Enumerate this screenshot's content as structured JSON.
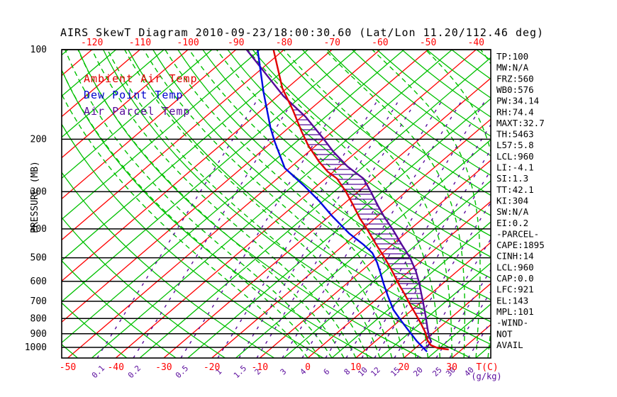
{
  "title": "AIRS SkewT Diagram 2010-09-23/18:00:30.60 (Lat/Lon 11.20/112.46 deg)",
  "colors": {
    "isotherm_red": "#ff0000",
    "grid_green": "#00c000",
    "mixing_purple": "#5a0b9d",
    "pressure_black": "#000000",
    "ambient": "#e00000",
    "dewpoint": "#0008e0",
    "parcel": "#550a99"
  },
  "legend": [
    {
      "label": "Ambient Air Temp",
      "color": "#e00000"
    },
    {
      "label": "Dew Point Temp",
      "color": "#0000cc"
    },
    {
      "label": "Air Parcel Temp",
      "color": "#550a99"
    }
  ],
  "axes": {
    "pressure_label": "PRESSURE (MB)",
    "pressure_ticks": [
      100,
      200,
      300,
      400,
      500,
      600,
      700,
      800,
      900,
      1000
    ],
    "top_temp_ticks": [
      -120,
      -110,
      -100,
      -90,
      -80,
      -70,
      -60,
      -50,
      -40
    ],
    "bottom_temp_ticks": [
      -50,
      -40,
      -30,
      -20,
      -10,
      0,
      10,
      20,
      30
    ],
    "temp_unit_label": "T(C)",
    "mixing_ratio_ticks": [
      0.1,
      0.2,
      0.5,
      1,
      1.5,
      2,
      3,
      4,
      6,
      8,
      10,
      12,
      15,
      20,
      25,
      30,
      40
    ],
    "mixing_unit_label": "(g/kg)"
  },
  "stats": [
    "TP:100",
    "MW:N/A",
    "FRZ:560",
    "WB0:576",
    "PW:34.14",
    "RH:74.4",
    "MAXT:32.7",
    "TH:5463",
    "L57:5.8",
    "LCL:960",
    "LI:-4.1",
    "SI:1.3",
    "TT:42.1",
    "KI:304",
    "SW:N/A",
    "EI:0.2",
    "-PARCEL-",
    "CAPE:1895",
    "CINH:14",
    "LCL:960",
    "CAP:0.0",
    "LFC:921",
    "EL:143",
    "MPL:101",
    "-WIND-",
    "NOT",
    "AVAIL"
  ],
  "chart_data": {
    "type": "line",
    "variant": "skew-t-log-p",
    "title": "AIRS SkewT Diagram 2010-09-23/18:00:30.60 (Lat/Lon 11.20/112.46 deg)",
    "ylabel": "PRESSURE (MB)",
    "xlabel": "T(C)",
    "pressure_range_mb": [
      100,
      1085
    ],
    "bottom_temp_range_c": [
      -50,
      30
    ],
    "top_temp_range_c": [
      -120,
      -40
    ],
    "grid": {
      "isotherms_red_interval_c": 10,
      "isotherms_green_interval_c": 10,
      "isotherms_green_offset_c": 5,
      "dry_adiabats": "solid green, every 10 K potential temperature",
      "moist_adiabats": "dashed green, every 2.5 C surface temperature",
      "mixing_ratio_lines": "dashed purple at labeled g/kg values",
      "cape_region": "horizontal purple hatching between Ambient and Parcel curves from ~950 mb up to ~150 mb"
    },
    "series": [
      {
        "name": "Ambient Air Temp",
        "color": "#e00000",
        "units": [
          "mb",
          "C"
        ],
        "points": [
          [
            100,
            -82.2
          ],
          [
            135,
            -70.9
          ],
          [
            159,
            -63.6
          ],
          [
            188,
            -56.5
          ],
          [
            210,
            -51.6
          ],
          [
            238,
            -45.4
          ],
          [
            257,
            -41.2
          ],
          [
            271,
            -37.6
          ],
          [
            299,
            -32.7
          ],
          [
            334,
            -27.6
          ],
          [
            369,
            -23.1
          ],
          [
            400,
            -19.1
          ],
          [
            451,
            -13.4
          ],
          [
            500,
            -8.4
          ],
          [
            548,
            -4.1
          ],
          [
            611,
            0.8
          ],
          [
            662,
            4.6
          ],
          [
            718,
            8.3
          ],
          [
            770,
            11.6
          ],
          [
            832,
            15.2
          ],
          [
            890,
            18.2
          ],
          [
            944,
            20.5
          ],
          [
            983,
            22.5
          ],
          [
            1005,
            24.6
          ],
          [
            1017,
            27.3
          ]
        ]
      },
      {
        "name": "Dew Point Temp",
        "color": "#0008e0",
        "units": [
          "mb",
          "C"
        ],
        "points": [
          [
            100,
            -85.5
          ],
          [
            139,
            -73.9
          ],
          [
            183,
            -63.8
          ],
          [
            204,
            -59.5
          ],
          [
            250,
            -51.0
          ],
          [
            286,
            -42.8
          ],
          [
            322,
            -35.9
          ],
          [
            362,
            -29.5
          ],
          [
            415,
            -21.6
          ],
          [
            451,
            -16.1
          ],
          [
            482,
            -12.1
          ],
          [
            519,
            -8.8
          ],
          [
            562,
            -5.6
          ],
          [
            611,
            -2.3
          ],
          [
            674,
            1.7
          ],
          [
            748,
            6.1
          ],
          [
            811,
            10.2
          ],
          [
            871,
            13.9
          ],
          [
            953,
            18.6
          ],
          [
            1034,
            23.3
          ]
        ]
      },
      {
        "name": "Air Parcel Temp",
        "color": "#550a99",
        "units": [
          "mb",
          "C"
        ],
        "points": [
          [
            100,
            -87.8
          ],
          [
            143,
            -68.9
          ],
          [
            168,
            -59.2
          ],
          [
            198,
            -50.4
          ],
          [
            221,
            -44.7
          ],
          [
            247,
            -38.3
          ],
          [
            271,
            -32.1
          ],
          [
            299,
            -27.5
          ],
          [
            334,
            -22.5
          ],
          [
            367,
            -18.1
          ],
          [
            400,
            -13.8
          ],
          [
            451,
            -8.1
          ],
          [
            500,
            -3.1
          ],
          [
            555,
            1.4
          ],
          [
            604,
            4.7
          ],
          [
            662,
            8.1
          ],
          [
            726,
            11.5
          ],
          [
            793,
            14.7
          ],
          [
            858,
            17.5
          ],
          [
            916,
            19.9
          ],
          [
            956,
            21.7
          ],
          [
            992,
            22.1
          ],
          [
            1010,
            21.9
          ]
        ]
      }
    ],
    "annotations": {
      "sounding_indices": [
        "TP:100",
        "MW:N/A",
        "FRZ:560",
        "WB0:576",
        "PW:34.14",
        "RH:74.4",
        "MAXT:32.7",
        "TH:5463",
        "L57:5.8",
        "LCL:960",
        "LI:-4.1",
        "SI:1.3",
        "TT:42.1",
        "KI:304",
        "SW:N/A",
        "EI:0.2"
      ],
      "parcel_indices": [
        "CAPE:1895",
        "CINH:14",
        "LCL:960",
        "CAP:0.0",
        "LFC:921",
        "EL:143",
        "MPL:101"
      ],
      "wind": [
        "NOT",
        "AVAIL"
      ]
    }
  }
}
